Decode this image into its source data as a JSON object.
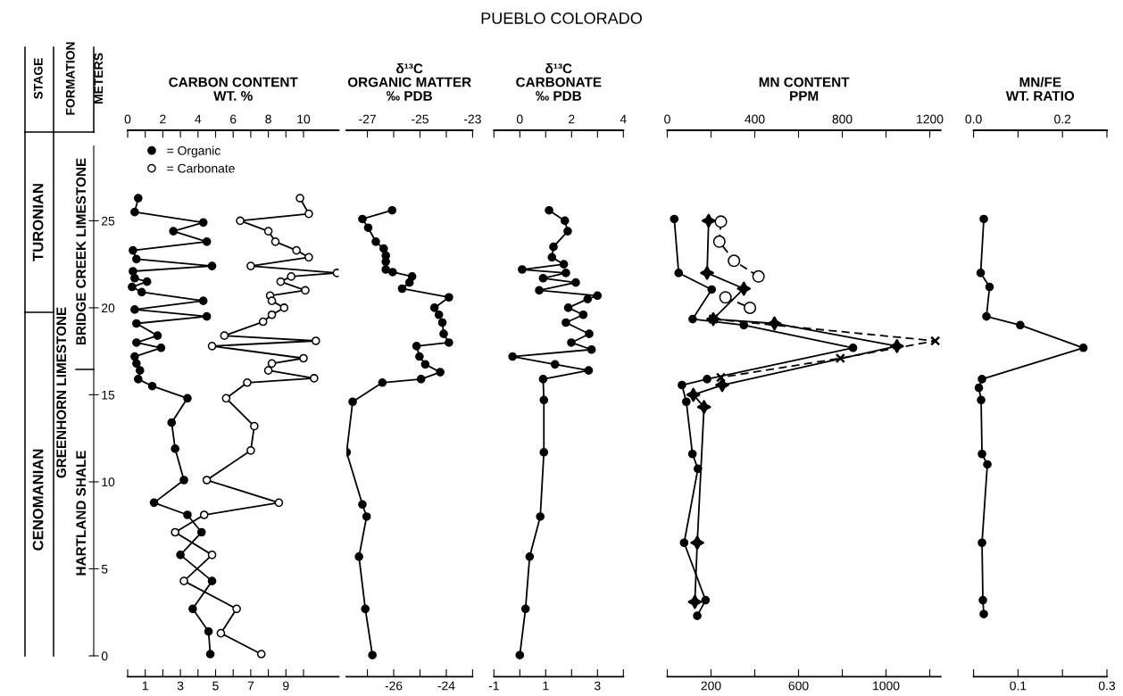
{
  "chart_data": [
    {
      "type": "line",
      "orientation": "horizontal",
      "title": "CARBON CONTENT\nWT. %",
      "ylabel": "METERS",
      "xlim": [
        0,
        12
      ],
      "x2lim": [
        0,
        12
      ],
      "ylim": [
        -1.2,
        30.2
      ],
      "xticks": [
        {
          "value": 0,
          "label": null
        },
        1,
        {
          "value": 2,
          "label": null
        },
        3,
        {
          "value": 4,
          "label": null
        },
        5,
        {
          "value": 6,
          "label": null
        },
        7,
        {
          "value": 8,
          "label": null
        },
        9,
        {
          "value": 10,
          "label": null
        }
      ],
      "x2ticks": [
        0,
        {
          "value": 1,
          "label": null
        },
        2,
        {
          "value": 3,
          "label": null
        },
        4,
        {
          "value": 5,
          "label": null
        },
        6,
        {
          "value": 7,
          "label": null
        },
        8,
        {
          "value": 9,
          "label": null
        },
        10
      ],
      "yticks": [
        0,
        5,
        10,
        15,
        20,
        25
      ],
      "legend": "top left",
      "annotations": [
        "PUEBLO COLORADO",
        "STAGE",
        "FORMATION",
        "TURONIAN",
        "CENOMANIAN",
        "GREENHORN LIMESTONE",
        "BRIDGE CREEK LIMESTONE",
        "HARTLAND SHALE"
      ],
      "series": [
        {
          "name": "= Organic",
          "color": "#000000",
          "marker": "circle",
          "x": [
            26.3,
            25.5,
            24.9,
            24.4,
            23.8,
            23.3,
            22.8,
            22.4,
            22.1,
            21.7,
            21.5,
            21.2,
            20.9,
            20.4,
            19.9,
            19.5,
            19.1,
            18.4,
            18.0,
            17.7,
            17.2,
            16.8,
            16.4,
            15.9,
            15.5,
            14.8,
            13.4,
            11.9,
            10.1,
            8.8,
            8.1,
            7.1,
            5.8,
            4.3,
            2.7,
            1.4,
            0.1
          ],
          "values": [
            0.6,
            0.4,
            4.3,
            2.6,
            4.5,
            0.3,
            0.5,
            4.8,
            0.3,
            0.4,
            1.1,
            0.25,
            0.8,
            4.3,
            0.4,
            4.5,
            0.5,
            1.7,
            0.5,
            1.9,
            0.4,
            0.5,
            0.7,
            0.6,
            1.4,
            3.4,
            2.5,
            2.7,
            3.2,
            1.5,
            3.4,
            4.2,
            3.0,
            4.8,
            3.7,
            4.6,
            4.7
          ]
        },
        {
          "name": "= Carbonate",
          "color": "#000000",
          "marker": "circle",
          "x": [
            26.3,
            25.4,
            25.0,
            24.4,
            23.8,
            23.3,
            22.9,
            22.4,
            22.0,
            21.8,
            21.5,
            21.0,
            20.7,
            20.4,
            20.0,
            19.6,
            19.2,
            18.4,
            18.1,
            17.8,
            17.1,
            16.8,
            16.4,
            15.95,
            15.7,
            14.8,
            13.2,
            11.8,
            10.1,
            8.8,
            8.1,
            7.1,
            5.8,
            4.3,
            2.7,
            1.3,
            0.1
          ],
          "values": [
            9.8,
            10.3,
            6.4,
            8.0,
            8.4,
            9.6,
            10.3,
            7.0,
            11.9,
            9.3,
            8.7,
            10.1,
            8.1,
            8.2,
            8.9,
            8.2,
            7.7,
            5.5,
            10.7,
            4.8,
            10.0,
            8.2,
            8.0,
            10.6,
            6.8,
            5.6,
            7.2,
            7.0,
            4.5,
            8.6,
            4.35,
            2.7,
            4.8,
            3.2,
            6.2,
            5.3,
            7.6
          ],
          "colors": [
            "#ffffff",
            "#ffffff",
            "#ffffff",
            "#ffffff",
            "#ffffff",
            "#ffffff",
            "#ffffff",
            "#ffffff",
            "#ffffff",
            "#ffffff",
            "#ffffff",
            "#ffffff",
            "#ffffff",
            "#ffffff",
            "#ffffff",
            "#ffffff",
            "#ffffff",
            "#ffffff",
            "#ffffff",
            "#ffffff",
            "#ffffff",
            "#ffffff",
            "#ffffff",
            "#ffffff",
            "#ffffff",
            "#ffffff",
            "#ffffff",
            "#ffffff",
            "#ffffff",
            "#ffffff",
            "#ffffff",
            "#ffffff",
            "#ffffff",
            "#ffffff",
            "#ffffff",
            "#ffffff",
            "#ffffff"
          ]
        }
      ]
    },
    {
      "type": "line",
      "orientation": "horizontal",
      "title": "δ¹³C\nORGANIC MATTER\n‰ PDB",
      "xlim": [
        -27.8,
        -23
      ],
      "x2lim": [
        -27.8,
        -23
      ],
      "ylim": [
        -1.2,
        30.2
      ],
      "tick_labels": "x",
      "xticks": [
        {
          "value": -27,
          "label": null
        },
        -26,
        {
          "value": -25,
          "label": null
        },
        -24,
        {
          "value": -23,
          "label": null
        }
      ],
      "x2ticks": [
        -27,
        {
          "value": -26,
          "label": null
        },
        -25,
        {
          "value": -24,
          "label": null
        },
        -23
      ],
      "series": [
        {
          "color": "#000000",
          "marker": "circle",
          "x": [
            25.6,
            25.1,
            24.6,
            23.8,
            23.4,
            23.0,
            22.65,
            22.2,
            22.05,
            21.8,
            21.45,
            21.1,
            20.6,
            20.0,
            19.6,
            19.15,
            18.5,
            18.0,
            17.8,
            17.2,
            16.75,
            16.3,
            15.9,
            15.7,
            14.6,
            11.7,
            8.7,
            8.0,
            5.7,
            2.7,
            0.04
          ],
          "values": [
            -26.06,
            -27.19,
            -26.97,
            -26.68,
            -26.38,
            -26.3,
            -26.3,
            -26.3,
            -26.04,
            -25.3,
            -25.4,
            -25.68,
            -23.9,
            -24.45,
            -24.28,
            -24.15,
            -24.1,
            -23.9,
            -25.13,
            -25.02,
            -24.8,
            -24.23,
            -24.96,
            -26.43,
            -27.56,
            -27.79,
            -27.19,
            -27.03,
            -27.32,
            -27.08,
            -26.81
          ]
        }
      ]
    },
    {
      "type": "line",
      "orientation": "horizontal",
      "title": "δ¹³C\nCARBONATE\n‰ PDB",
      "xlim": [
        -1,
        4
      ],
      "x2lim": [
        -1,
        4
      ],
      "ylim": [
        -1.2,
        30.2
      ],
      "tick_labels": "x",
      "xticks": [
        -1,
        {
          "value": 0,
          "label": null
        },
        1,
        {
          "value": 2,
          "label": null
        },
        3,
        {
          "value": 4,
          "label": null
        }
      ],
      "x2ticks": [
        {
          "value": -1,
          "label": null
        },
        0,
        {
          "value": 1,
          "label": null
        },
        2,
        {
          "value": 3,
          "label": null
        },
        4
      ],
      "series": [
        {
          "color": "#000000",
          "marker": "circle",
          "x": [
            25.6,
            25.0,
            24.4,
            23.5,
            22.9,
            22.5,
            22.2,
            22.0,
            21.7,
            21.45,
            21.0,
            20.7,
            20.5,
            20.0,
            19.6,
            19.15,
            18.5,
            18.0,
            17.6,
            17.2,
            16.75,
            16.4,
            15.9,
            14.7,
            11.7,
            8.0,
            5.7,
            2.7,
            0.04
          ],
          "values": [
            1.13,
            1.74,
            1.85,
            1.3,
            1.24,
            1.7,
            0.09,
            1.78,
            0.9,
            2.16,
            0.75,
            3.0,
            2.62,
            1.87,
            2.45,
            1.78,
            2.68,
            1.99,
            2.77,
            -0.28,
            1.36,
            2.66,
            0.9,
            0.93,
            0.93,
            0.79,
            0.38,
            0.22,
            0.0
          ]
        }
      ]
    },
    {
      "type": "line",
      "orientation": "horizontal",
      "title": "MN CONTENT\nPPM",
      "xlim": [
        0,
        1250
      ],
      "x2lim": [
        0,
        1250
      ],
      "ylim": [
        -1.2,
        30.2
      ],
      "tick_labels": "x",
      "xticks": [
        {
          "value": 0,
          "label": null
        },
        200,
        {
          "value": 400,
          "label": null
        },
        600,
        {
          "value": 800,
          "label": null
        },
        1000,
        {
          "value": 1200,
          "label": null
        }
      ],
      "x2ticks": [
        0,
        {
          "value": 200,
          "label": null
        },
        400,
        {
          "value": 600,
          "label": null
        },
        800,
        {
          "value": 1000,
          "label": null
        },
        1200
      ],
      "series": [
        {
          "color": "#000000",
          "marker": "circle",
          "x": [
            25.1,
            22.0,
            21.05,
            19.35,
            19.0,
            17.7,
            15.9,
            15.56,
            14.6,
            11.6,
            10.75,
            6.5,
            3.2,
            2.3
          ],
          "values": [
            32,
            52,
            203,
            116,
            350,
            849,
            182,
            67,
            87,
            115,
            140,
            77,
            175,
            137
          ]
        },
        {
          "color": "#000000",
          "marker": "star",
          "x": [
            25.0,
            22.0,
            21.1,
            19.35,
            19.1,
            17.8,
            15.56,
            15.0,
            14.3,
            6.5,
            3.1
          ],
          "values": [
            189,
            182,
            350,
            210,
            490,
            1050,
            251,
            119,
            168,
            137,
            126
          ]
        },
        {
          "color": "#000000",
          "marker": "cross",
          "line_style": "dashed",
          "x": [
            19.35,
            18.1,
            17.1,
            16.0
          ],
          "values": [
            210,
            1225,
            791,
            245
          ]
        },
        {
          "color": "#000000",
          "marker": "circle",
          "line_style": "dashed",
          "x": [
            24.95,
            23.8,
            22.7,
            21.8,
            21.2,
            20.6,
            20.0
          ],
          "values": [
            245,
            238,
            305,
            417,
            null,
            266,
            378
          ],
          "colors": [
            "#ffffff",
            "#ffffff",
            "#ffffff",
            "#ffffff",
            "#ffffff",
            "#ffffff",
            "#ffffff"
          ]
        }
      ]
    },
    {
      "type": "line",
      "orientation": "horizontal",
      "title": "MN/FE\nWT. RATIO",
      "xlim": [
        0,
        0.3
      ],
      "x2lim": [
        0,
        0.3
      ],
      "ylim": [
        -1.2,
        30.2
      ],
      "tick_labels": "x",
      "xticks": [
        {
          "value": 0,
          "label": null
        },
        0.1,
        {
          "value": 0.2,
          "label": null
        },
        0.3
      ],
      "x2ticks": [
        {
          "value": 0,
          "label": "0.0"
        },
        {
          "value": 0.1,
          "label": null
        },
        0.2,
        {
          "value": 0.3,
          "label": null
        }
      ],
      "series": [
        {
          "color": "#000000",
          "marker": "circle",
          "x": [
            25.1,
            22.0,
            21.2,
            19.5,
            19.0,
            17.7,
            15.9,
            15.4,
            14.7,
            11.6,
            11.0,
            6.5,
            3.2,
            2.4
          ],
          "values": [
            0.023,
            0.016,
            0.036,
            0.029,
            0.105,
            0.247,
            0.019,
            0.012,
            0.017,
            0.019,
            0.031,
            0.019,
            0.021,
            0.023
          ]
        }
      ]
    }
  ]
}
